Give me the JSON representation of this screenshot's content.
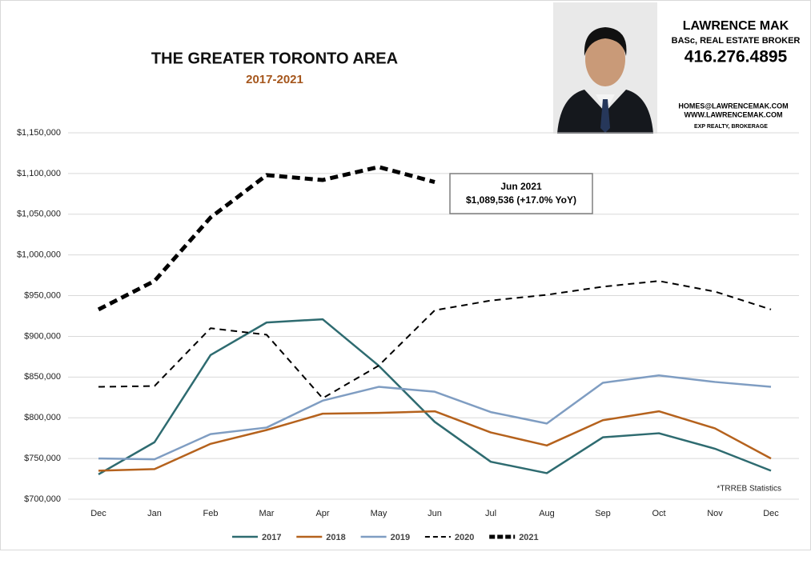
{
  "chart_data": {
    "type": "line",
    "title": "THE GREATER TORONTO AREA",
    "subtitle": "2017-2021",
    "categories": [
      "Dec",
      "Jan",
      "Feb",
      "Mar",
      "Apr",
      "May",
      "Jun",
      "Jul",
      "Aug",
      "Sep",
      "Oct",
      "Nov",
      "Dec"
    ],
    "series": [
      {
        "name": "2017",
        "color": "#2e6b70",
        "style": "solid",
        "values": [
          730500,
          770000,
          877000,
          917000,
          921000,
          864000,
          795000,
          746000,
          732000,
          776000,
          781000,
          762000,
          735000
        ]
      },
      {
        "name": "2018",
        "color": "#b5621d",
        "style": "solid",
        "values": [
          735000,
          737000,
          768000,
          785000,
          805000,
          806000,
          808000,
          782000,
          766000,
          797000,
          808000,
          787000,
          750000
        ]
      },
      {
        "name": "2019",
        "color": "#7f9dc2",
        "style": "solid",
        "values": [
          750000,
          749000,
          780000,
          788000,
          821000,
          838000,
          832000,
          807000,
          793000,
          843000,
          852000,
          844000,
          838000
        ]
      },
      {
        "name": "2020",
        "color": "#000000",
        "style": "dashed",
        "values": [
          838000,
          839000,
          910000,
          902000,
          824000,
          864000,
          932000,
          944000,
          951000,
          961000,
          968000,
          955000,
          933000
        ]
      },
      {
        "name": "2021",
        "color": "#000000",
        "style": "bold-dashed",
        "values": [
          933000,
          968000,
          1046000,
          1098000,
          1092000,
          1108000,
          1089536,
          null,
          null,
          null,
          null,
          null,
          null
        ]
      }
    ],
    "ylim": [
      700000,
      1150000
    ],
    "yticks": [
      {
        "value": 700000,
        "label": "$700,000"
      },
      {
        "value": 750000,
        "label": "$750,000"
      },
      {
        "value": 800000,
        "label": "$800,000"
      },
      {
        "value": 850000,
        "label": "$850,000"
      },
      {
        "value": 900000,
        "label": "$900,000"
      },
      {
        "value": 950000,
        "label": "$950,000"
      },
      {
        "value": 1000000,
        "label": "$1,000,000"
      },
      {
        "value": 1050000,
        "label": "$1,050,000"
      },
      {
        "value": 1100000,
        "label": "$1,100,000"
      },
      {
        "value": 1150000,
        "label": "$1,150,000"
      }
    ],
    "grid": true,
    "legend": "bottom",
    "annotation": [
      "Jun 2021",
      "$1,089,536 (+17.0% YoY)"
    ],
    "source": "*TRREB Statistics"
  },
  "branding": {
    "name": "LAWRENCE MAK",
    "role": "BASc, REAL ESTATE BROKER",
    "phone": "416.276.4895",
    "email": "HOMES@LAWRENCEMAK.COM",
    "web": "WWW.LAWRENCEMAK.COM",
    "company": "EXP REALTY, BROKERAGE"
  }
}
